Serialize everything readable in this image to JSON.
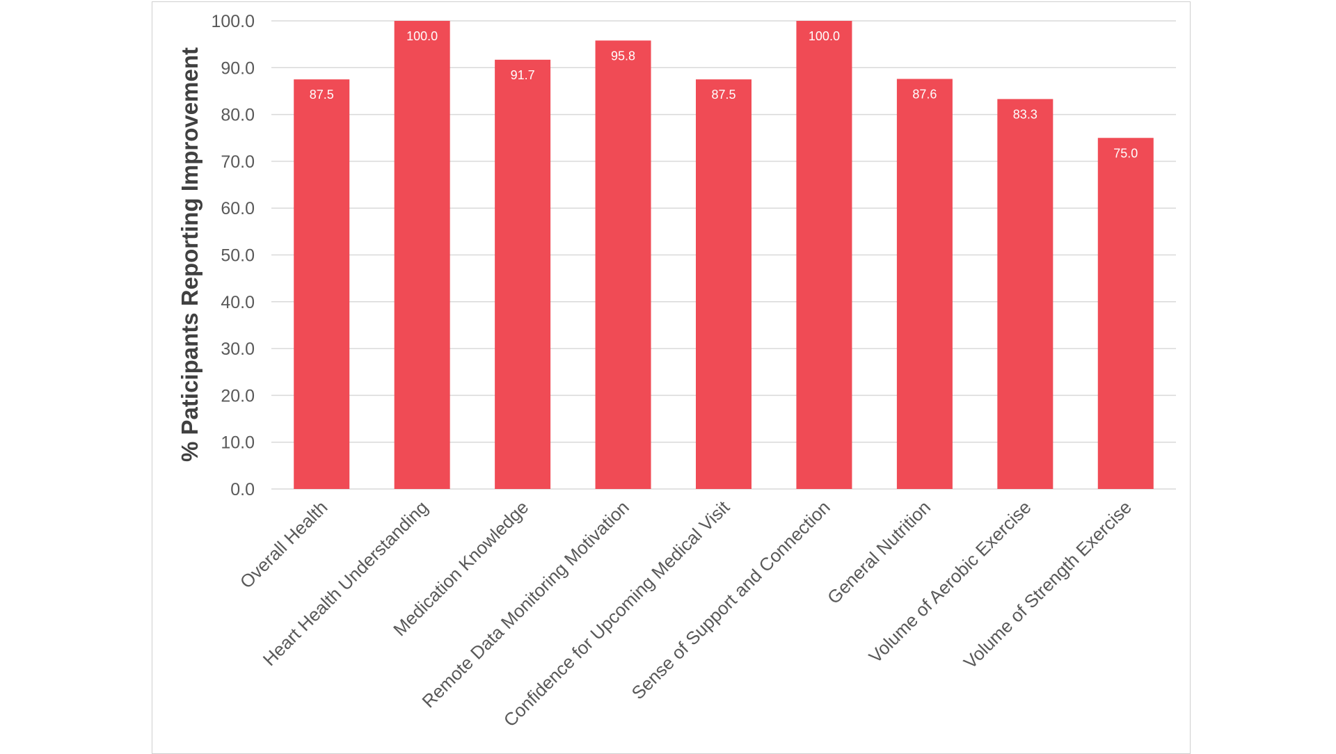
{
  "colors": {
    "bar": "#f04b55",
    "grid": "#d9d9d9",
    "text": "#595959",
    "frame": "#cfcfcf"
  },
  "chart_data": {
    "type": "bar",
    "title": "",
    "xlabel": "",
    "ylabel": "% Paticipants Reporting Improvement",
    "ylim": [
      0,
      100
    ],
    "ytick_step": 10,
    "ytick_format": "0.0",
    "grid": true,
    "legend": "none",
    "categories": [
      "Overall Health",
      "Heart Health Understanding",
      "Medication Knowledge",
      "Remote Data Monitoring Motivation",
      "Confidence for Upcoming Medical Visit",
      "Sense of Support and Connection",
      "General Nutrition",
      "Volume of Aerobic Exercise",
      "Volume of Strength Exercise"
    ],
    "values": [
      87.5,
      100.0,
      91.7,
      95.8,
      87.5,
      100.0,
      87.6,
      83.3,
      75.0
    ],
    "data_labels": [
      "87.5",
      "100.0",
      "91.7",
      "95.8",
      "87.5",
      "100.0",
      "87.6",
      "83.3",
      "75.0"
    ]
  }
}
